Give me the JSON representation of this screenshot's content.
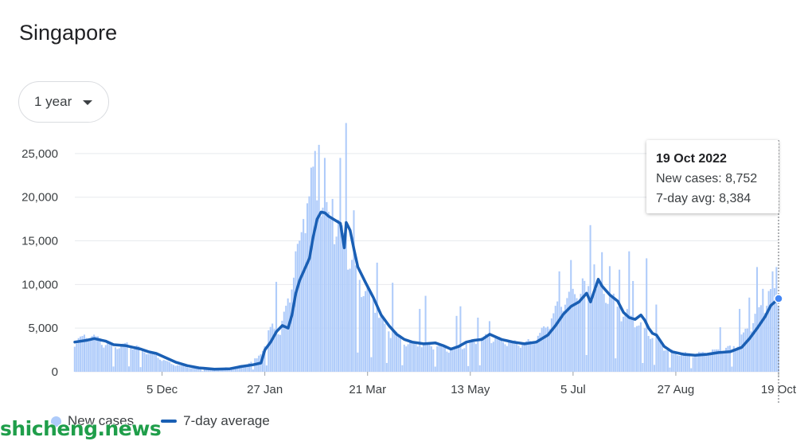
{
  "page": {
    "title": "Singapore",
    "range_selector": {
      "label": "1 year"
    }
  },
  "tooltip": {
    "date": "19 Oct 2022",
    "new_cases_line": "New cases: 8,752",
    "avg_line": "7-day avg: 8,384"
  },
  "legend": {
    "new_cases": "New cases",
    "avg": "7-day average"
  },
  "watermark": "shicheng.news",
  "colors": {
    "bars": "#aecbfa",
    "line": "#1a5fb4",
    "grid": "#e8eaed"
  },
  "chart_data": {
    "type": "bar",
    "y_ticks": [
      "0",
      "5,000",
      "10,000",
      "15,000",
      "20,000",
      "25,000"
    ],
    "y_tick_values": [
      0,
      5000,
      10000,
      15000,
      20000,
      25000
    ],
    "ylim": [
      0,
      28000
    ],
    "x_ticks": [
      "5 Dec",
      "27 Jan",
      "21 Mar",
      "13 May",
      "5 Jul",
      "27 Aug",
      "19 Oct"
    ],
    "x_tick_days": [
      45,
      98,
      151,
      204,
      257,
      310,
      363
    ],
    "x_range_days": [
      0,
      363
    ],
    "series": [
      {
        "name": "New cases",
        "style": "bars"
      },
      {
        "name": "7-day average",
        "style": "line"
      }
    ],
    "daily_anchors": [
      [
        0,
        3500
      ],
      [
        8,
        4200
      ],
      [
        18,
        3000
      ],
      [
        30,
        3100
      ],
      [
        40,
        2000
      ],
      [
        50,
        900
      ],
      [
        60,
        450
      ],
      [
        70,
        300
      ],
      [
        80,
        500
      ],
      [
        88,
        800
      ],
      [
        94,
        1500
      ],
      [
        98,
        3000
      ],
      [
        102,
        5500
      ],
      [
        106,
        4200
      ],
      [
        110,
        8500
      ],
      [
        114,
        12000
      ],
      [
        118,
        17000
      ],
      [
        122,
        21000
      ],
      [
        126,
        20000
      ],
      [
        130,
        18000
      ],
      [
        134,
        16500
      ],
      [
        138,
        16000
      ],
      [
        142,
        13000
      ],
      [
        146,
        11000
      ],
      [
        150,
        9500
      ],
      [
        156,
        7200
      ],
      [
        160,
        5200
      ],
      [
        166,
        4200
      ],
      [
        172,
        3300
      ],
      [
        180,
        3100
      ],
      [
        188,
        2900
      ],
      [
        192,
        2600
      ],
      [
        196,
        2700
      ],
      [
        200,
        3000
      ],
      [
        206,
        3500
      ],
      [
        212,
        3900
      ],
      [
        220,
        3600
      ],
      [
        228,
        3200
      ],
      [
        236,
        3400
      ],
      [
        242,
        4800
      ],
      [
        248,
        7000
      ],
      [
        256,
        9000
      ],
      [
        262,
        9200
      ],
      [
        266,
        10000
      ],
      [
        272,
        9200
      ],
      [
        278,
        8000
      ],
      [
        282,
        6800
      ],
      [
        288,
        6200
      ],
      [
        294,
        4800
      ],
      [
        300,
        3800
      ],
      [
        306,
        2500
      ],
      [
        312,
        2100
      ],
      [
        320,
        2000
      ],
      [
        328,
        2300
      ],
      [
        336,
        2600
      ],
      [
        342,
        3300
      ],
      [
        348,
        5200
      ],
      [
        354,
        7200
      ],
      [
        358,
        8900
      ],
      [
        363,
        8752
      ]
    ],
    "spikes": [
      [
        104,
        10300
      ],
      [
        114,
        13800
      ],
      [
        118,
        17500
      ],
      [
        120,
        19300
      ],
      [
        121,
        20100
      ],
      [
        123,
        23500
      ],
      [
        124,
        25300
      ],
      [
        126,
        26000
      ],
      [
        129,
        24500
      ],
      [
        133,
        19800
      ],
      [
        137,
        24500
      ],
      [
        140,
        28500
      ],
      [
        144,
        18500
      ],
      [
        156,
        12500
      ],
      [
        164,
        10200
      ],
      [
        178,
        7200
      ],
      [
        181,
        8700
      ],
      [
        197,
        6400
      ],
      [
        199,
        7500
      ],
      [
        208,
        6200
      ],
      [
        214,
        5800
      ],
      [
        250,
        11500
      ],
      [
        256,
        12800
      ],
      [
        262,
        10700
      ],
      [
        266,
        16800
      ],
      [
        268,
        12300
      ],
      [
        272,
        13700
      ],
      [
        276,
        12100
      ],
      [
        281,
        11700
      ],
      [
        286,
        13800
      ],
      [
        288,
        10400
      ],
      [
        295,
        13000
      ],
      [
        300,
        7700
      ],
      [
        333,
        5100
      ],
      [
        343,
        7200
      ],
      [
        348,
        8500
      ],
      [
        352,
        12000
      ],
      [
        355,
        9500
      ],
      [
        360,
        11500
      ],
      [
        362,
        12000
      ]
    ],
    "low_days": [
      20,
      28,
      34,
      66,
      92,
      99,
      146,
      153,
      161,
      169,
      186,
      203,
      209,
      264,
      279,
      293,
      299,
      307,
      318,
      339
    ],
    "avg_anchors": [
      [
        0,
        3400
      ],
      [
        6,
        3600
      ],
      [
        10,
        3800
      ],
      [
        16,
        3500
      ],
      [
        20,
        3100
      ],
      [
        26,
        3000
      ],
      [
        30,
        2800
      ],
      [
        34,
        2600
      ],
      [
        38,
        2300
      ],
      [
        42,
        2100
      ],
      [
        46,
        1700
      ],
      [
        52,
        1100
      ],
      [
        58,
        700
      ],
      [
        64,
        450
      ],
      [
        72,
        300
      ],
      [
        80,
        350
      ],
      [
        86,
        600
      ],
      [
        92,
        800
      ],
      [
        96,
        1000
      ],
      [
        98,
        2500
      ],
      [
        101,
        3400
      ],
      [
        104,
        4600
      ],
      [
        107,
        5300
      ],
      [
        110,
        5000
      ],
      [
        112,
        6500
      ],
      [
        114,
        9000
      ],
      [
        116,
        10500
      ],
      [
        118,
        11500
      ],
      [
        121,
        13000
      ],
      [
        123,
        15500
      ],
      [
        125,
        17500
      ],
      [
        127,
        18300
      ],
      [
        129,
        18200
      ],
      [
        131,
        17800
      ],
      [
        134,
        17400
      ],
      [
        137,
        17000
      ],
      [
        139,
        14200
      ],
      [
        140,
        17100
      ],
      [
        142,
        16200
      ],
      [
        144,
        14000
      ],
      [
        146,
        12000
      ],
      [
        150,
        10200
      ],
      [
        154,
        8500
      ],
      [
        158,
        6500
      ],
      [
        162,
        5300
      ],
      [
        166,
        4300
      ],
      [
        170,
        3700
      ],
      [
        174,
        3400
      ],
      [
        180,
        3200
      ],
      [
        186,
        3300
      ],
      [
        190,
        3000
      ],
      [
        194,
        2600
      ],
      [
        198,
        2900
      ],
      [
        202,
        3400
      ],
      [
        206,
        3600
      ],
      [
        210,
        3700
      ],
      [
        214,
        4300
      ],
      [
        220,
        3700
      ],
      [
        226,
        3400
      ],
      [
        232,
        3200
      ],
      [
        238,
        3400
      ],
      [
        244,
        4200
      ],
      [
        248,
        5300
      ],
      [
        252,
        6600
      ],
      [
        256,
        7500
      ],
      [
        260,
        8000
      ],
      [
        264,
        9000
      ],
      [
        266,
        8000
      ],
      [
        268,
        9300
      ],
      [
        270,
        10600
      ],
      [
        272,
        9800
      ],
      [
        276,
        8800
      ],
      [
        280,
        8100
      ],
      [
        283,
        6800
      ],
      [
        286,
        6200
      ],
      [
        289,
        6000
      ],
      [
        292,
        6500
      ],
      [
        294,
        5900
      ],
      [
        296,
        5000
      ],
      [
        298,
        4400
      ],
      [
        300,
        4200
      ],
      [
        304,
        2900
      ],
      [
        308,
        2300
      ],
      [
        314,
        2000
      ],
      [
        320,
        1900
      ],
      [
        326,
        2000
      ],
      [
        332,
        2200
      ],
      [
        338,
        2300
      ],
      [
        344,
        2800
      ],
      [
        348,
        3800
      ],
      [
        352,
        5000
      ],
      [
        356,
        6300
      ],
      [
        359,
        7600
      ],
      [
        363,
        8384
      ]
    ],
    "highlight": {
      "day": 363,
      "new_cases": 8752,
      "avg": 8384
    }
  }
}
